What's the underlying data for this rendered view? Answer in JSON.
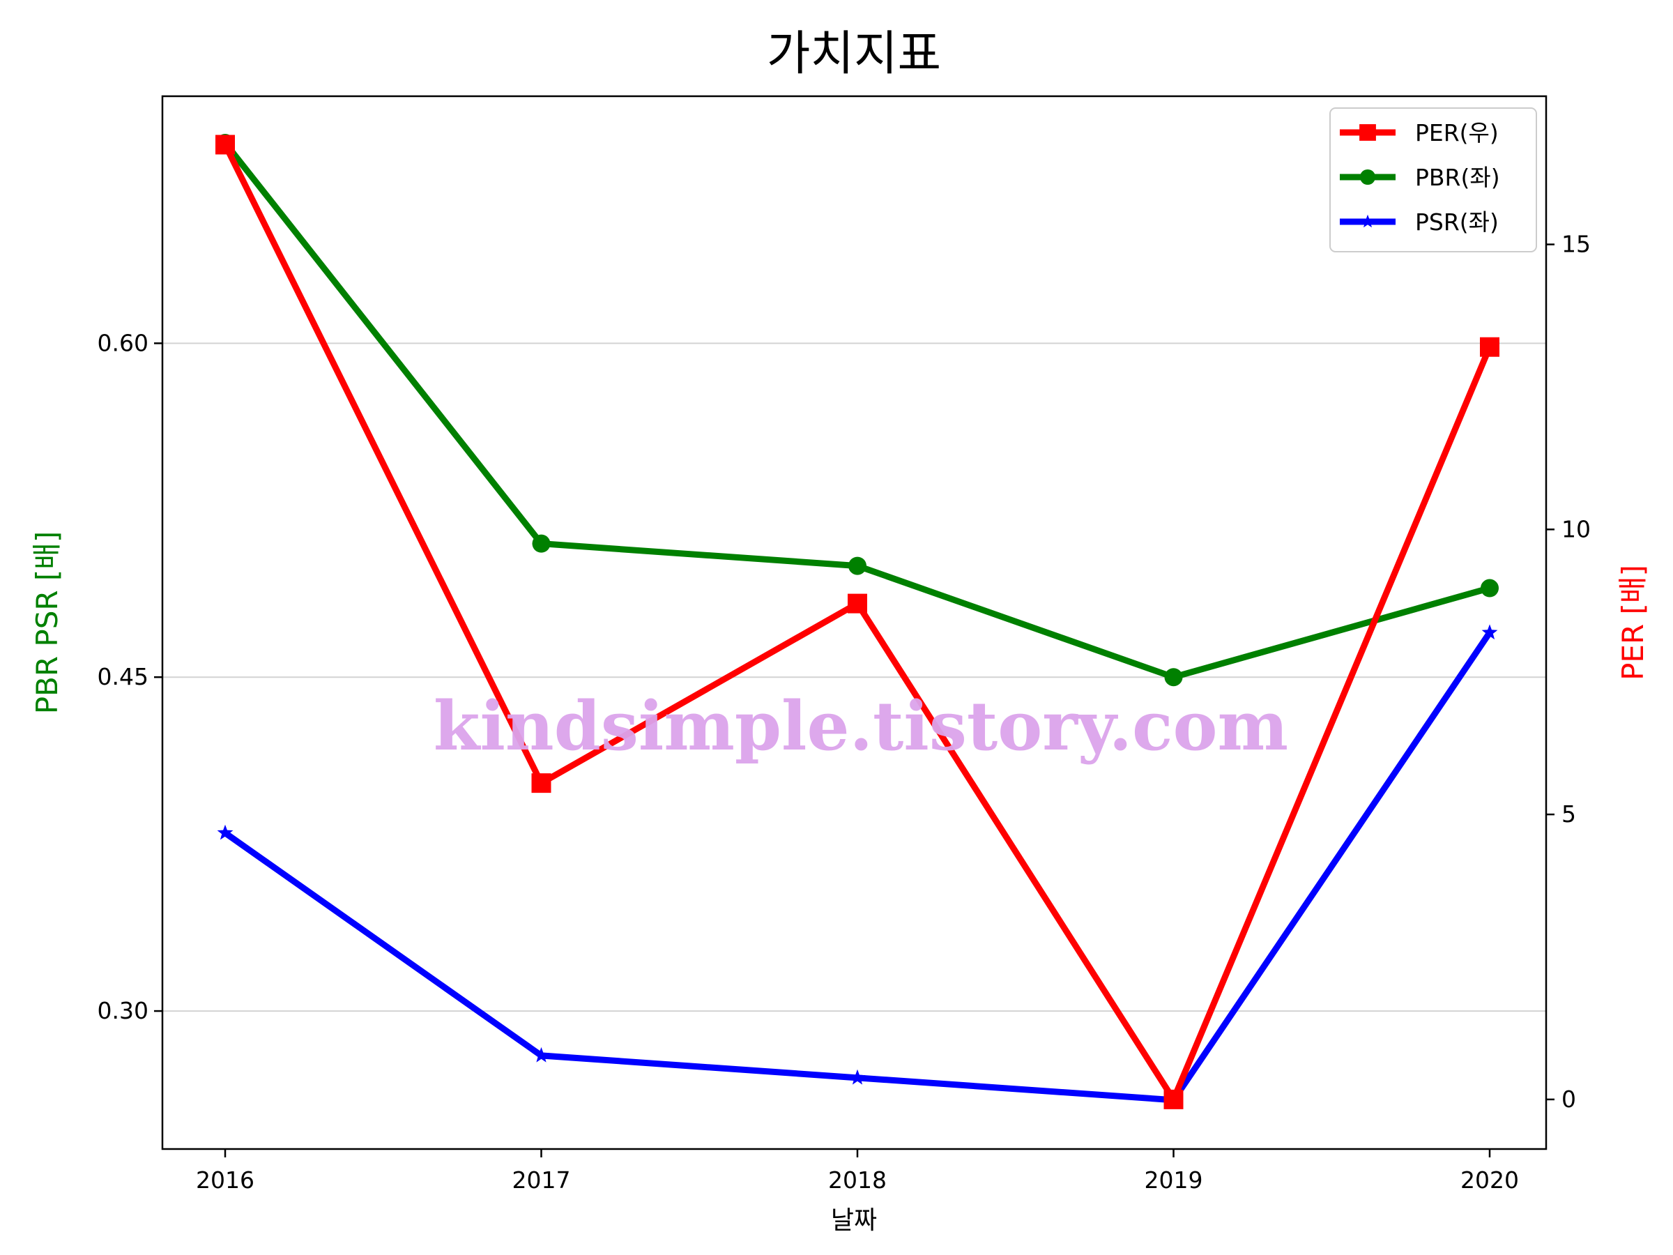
{
  "chart_data": {
    "type": "line",
    "title": "가치지표",
    "xlabel": "날짜",
    "ylabel_left": "PBR PSR [배]",
    "ylabel_right": "PER [배]",
    "categories": [
      "2016",
      "2017",
      "2018",
      "2019",
      "2020"
    ],
    "left_axis": {
      "ylim": [
        0.238,
        0.711
      ],
      "ticks": [
        "0.30",
        "0.45",
        "0.60"
      ],
      "tick_values": [
        0.3,
        0.45,
        0.6
      ]
    },
    "right_axis": {
      "ylim": [
        -0.87,
        17.6
      ],
      "ticks": [
        "0",
        "5",
        "10",
        "15"
      ],
      "tick_values": [
        0,
        5,
        10,
        15
      ]
    },
    "grid": "horizontal (left axis)",
    "legend_position": "upper right",
    "series": [
      {
        "name": "PER(우)",
        "axis": "right",
        "color": "#ff0000",
        "marker": "square",
        "values": [
          16.75,
          5.55,
          8.7,
          0.0,
          13.2
        ]
      },
      {
        "name": "PBR(좌)",
        "axis": "left",
        "color": "#008000",
        "marker": "circle",
        "values": [
          0.69,
          0.51,
          0.5,
          0.45,
          0.49
        ]
      },
      {
        "name": "PSR(좌)",
        "axis": "left",
        "color": "#0000ff",
        "marker": "star",
        "values": [
          0.38,
          0.28,
          0.27,
          0.26,
          0.47
        ]
      }
    ],
    "watermark": "kindsimple.tistory.com",
    "colors": {
      "left_label": "#008000",
      "right_label": "#ff0000",
      "watermark": "#dca4ec"
    }
  }
}
